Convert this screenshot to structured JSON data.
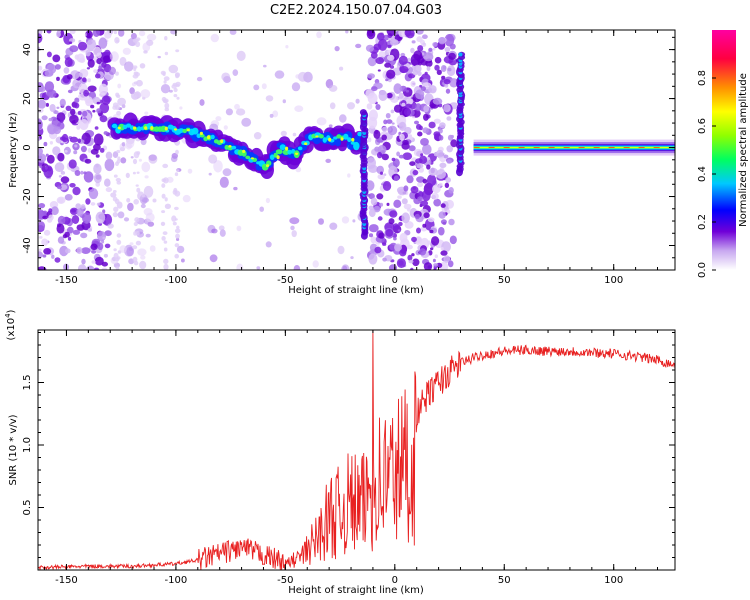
{
  "page": {
    "title": "C2E2.2024.150.07.04.G03"
  },
  "chart_data": [
    {
      "type": "heatmap",
      "xlabel": "Height of straight line (km)",
      "ylabel": "Frequency (Hz)",
      "xlim": [
        -163,
        128
      ],
      "ylim": [
        -50,
        48
      ],
      "xticks": [
        -150,
        -100,
        -50,
        0,
        50,
        100
      ],
      "yticks": [
        -40,
        -20,
        0,
        20,
        40
      ],
      "colorbar": {
        "label": "Normalized spectral amplitude",
        "range": [
          0,
          1
        ],
        "ticks": [
          0.0,
          0.2,
          0.4,
          0.6,
          0.8
        ],
        "colors": [
          "#ffffff",
          "#c8a8f0",
          "#7000d8",
          "#0000ff",
          "#00c8ff",
          "#00ff60",
          "#90ff00",
          "#ffff00",
          "#ff9000",
          "#ff0040",
          "#ff00a0"
        ]
      },
      "ridge": [
        {
          "x": -128,
          "y": 8
        },
        {
          "x": -110,
          "y": 8
        },
        {
          "x": -95,
          "y": 7
        },
        {
          "x": -82,
          "y": 3
        },
        {
          "x": -70,
          "y": -2
        },
        {
          "x": -60,
          "y": -8
        },
        {
          "x": -52,
          "y": 0
        },
        {
          "x": -45,
          "y": -3
        },
        {
          "x": -38,
          "y": 5
        },
        {
          "x": -30,
          "y": 3
        },
        {
          "x": -22,
          "y": 4
        },
        {
          "x": -17,
          "y": 0
        },
        {
          "x": -15,
          "y": 12
        }
      ],
      "flat_line": {
        "x_start": 36,
        "x_end": 128,
        "y": 0
      }
    },
    {
      "type": "line",
      "xlabel": "Height of straight line (km)",
      "ylabel": "SNR (10 * v/v)",
      "yscale_label": "(x10",
      "yscale_exp": "4",
      "xlim": [
        -163,
        128
      ],
      "ylim": [
        0,
        1.92
      ],
      "xticks": [
        -150,
        -100,
        -50,
        0,
        50,
        100
      ],
      "yticks": [
        0.5,
        1.0,
        1.5
      ],
      "series": [
        {
          "color": "#e82020",
          "x": [
            -163,
            -140,
            -120,
            -100,
            -90,
            -80,
            -70,
            -60,
            -50,
            -42,
            -35,
            -30,
            -25,
            -20,
            -15,
            -10,
            -5,
            0,
            5,
            10,
            15,
            20,
            25,
            30,
            40,
            50,
            60,
            70,
            80,
            90,
            100,
            110,
            120,
            128
          ],
          "y": [
            0.02,
            0.03,
            0.03,
            0.05,
            0.08,
            0.13,
            0.18,
            0.12,
            0.06,
            0.15,
            0.35,
            0.55,
            0.6,
            0.7,
            0.65,
            0.9,
            0.95,
            1.0,
            1.1,
            1.25,
            1.4,
            1.5,
            1.58,
            1.66,
            1.72,
            1.75,
            1.76,
            1.75,
            1.75,
            1.74,
            1.73,
            1.71,
            1.68,
            1.64
          ]
        }
      ]
    }
  ]
}
